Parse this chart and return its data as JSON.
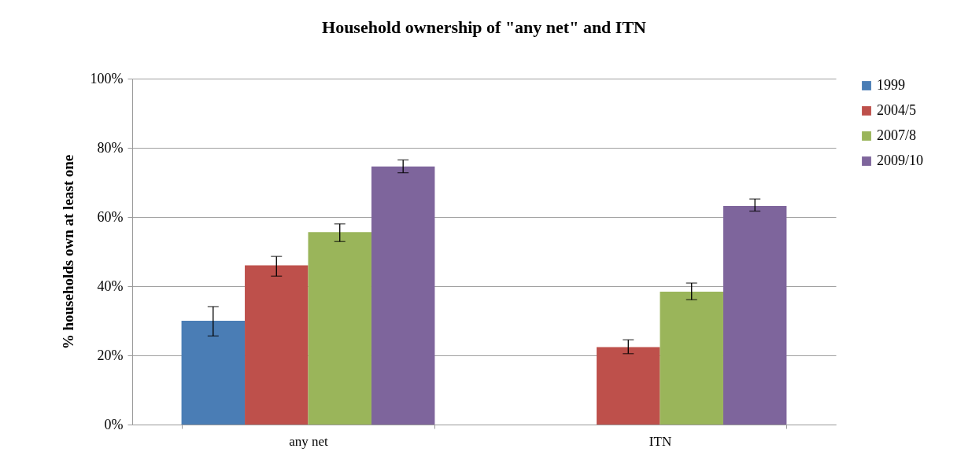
{
  "chart_data": {
    "type": "bar",
    "title": "Household ownership of \"any net\" and ITN",
    "ylabel": "% households own at least one",
    "categories": [
      "any net",
      "ITN"
    ],
    "series": [
      {
        "name": "1999",
        "color": "#4a7db5",
        "values": [
          30,
          null
        ],
        "errors": [
          [
            25.6,
            34.1
          ],
          null
        ]
      },
      {
        "name": "2004/5",
        "color": "#be504b",
        "values": [
          46,
          22.4
        ],
        "errors": [
          [
            42.9,
            48.6
          ],
          [
            20.5,
            24.5
          ]
        ]
      },
      {
        "name": "2007/8",
        "color": "#9ab55a",
        "values": [
          55.6,
          38.4
        ],
        "errors": [
          [
            52.9,
            58
          ],
          [
            36.1,
            40.9
          ]
        ]
      },
      {
        "name": "2009/10",
        "color": "#7e659c",
        "values": [
          74.6,
          63.2
        ],
        "errors": [
          [
            72.8,
            76.5
          ],
          [
            61.7,
            65.2
          ]
        ]
      }
    ],
    "ylim": [
      0,
      100
    ],
    "yticks": [
      {
        "value": 0,
        "label": "0%"
      },
      {
        "value": 20,
        "label": "20%"
      },
      {
        "value": 40,
        "label": "40%"
      },
      {
        "value": 60,
        "label": "60%"
      },
      {
        "value": 80,
        "label": "80%"
      },
      {
        "value": 100,
        "label": "100%"
      }
    ],
    "grid": "y",
    "legend": "right"
  }
}
